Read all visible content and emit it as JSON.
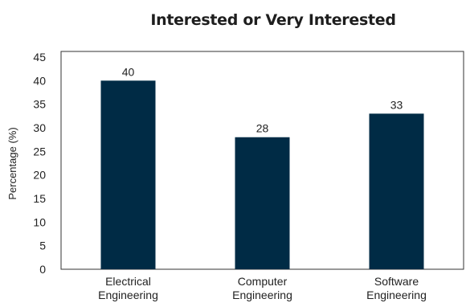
{
  "chart_data": {
    "type": "bar",
    "title": "Interested or Very Interested",
    "ylabel": "Percentage (%)",
    "xlabel": "",
    "categories": [
      [
        "Electrical",
        "Engineering"
      ],
      [
        "Computer",
        "Engineering"
      ],
      [
        "Software",
        "Engineering"
      ]
    ],
    "values": [
      40,
      28,
      33
    ],
    "data_labels": [
      "40",
      "28",
      "33"
    ],
    "ylim": [
      0,
      45
    ],
    "yticks": [
      0,
      5,
      10,
      15,
      20,
      25,
      30,
      35,
      40,
      45
    ],
    "bar_color": "#002b45",
    "grid": false,
    "legend": "none"
  }
}
